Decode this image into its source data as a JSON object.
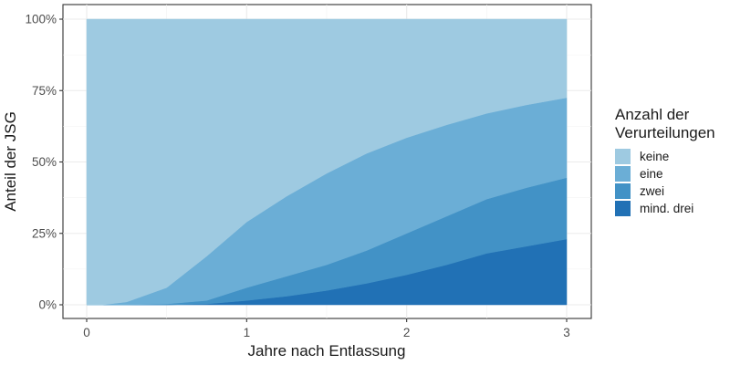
{
  "chart_data": {
    "type": "area",
    "stacked": true,
    "normalized": true,
    "title": "",
    "xlabel": "Jahre nach Entlassung",
    "ylabel": "Anteil der JSG",
    "xlim": [
      0,
      3
    ],
    "ylim": [
      0,
      100
    ],
    "x_ticks": [
      "0",
      "1",
      "2",
      "3"
    ],
    "y_ticks": [
      "0%",
      "25%",
      "50%",
      "75%",
      "100%"
    ],
    "grid": true,
    "legend_position": "right",
    "legend_title": "Anzahl der Verurteilungen",
    "x": [
      0,
      0.1,
      0.25,
      0.5,
      0.75,
      1.0,
      1.25,
      1.5,
      1.75,
      2.0,
      2.25,
      2.5,
      2.75,
      3.0
    ],
    "series": [
      {
        "name": "mind. drei",
        "color": "#2171b5",
        "values": [
          0,
          0,
          0,
          0,
          0.3,
          1.5,
          3,
          5,
          7.5,
          10.5,
          14,
          18,
          20.5,
          23
        ]
      },
      {
        "name": "zwei",
        "color": "#4292c6",
        "values": [
          0,
          0,
          0,
          0.3,
          1.2,
          4.5,
          7,
          9,
          11.5,
          14.5,
          17,
          19,
          20.5,
          21.5
        ]
      },
      {
        "name": "eine",
        "color": "#6baed6",
        "values": [
          0,
          0,
          1,
          5.7,
          15.5,
          23,
          28,
          32,
          34,
          33.5,
          32,
          30,
          29,
          28
        ]
      },
      {
        "name": "keine",
        "color": "#9ecae1",
        "values": [
          100,
          100,
          99,
          94,
          83,
          71,
          62,
          54,
          47,
          41.5,
          37,
          33,
          30,
          27.5
        ]
      }
    ]
  },
  "legend": {
    "title_line1": "Anzahl der",
    "title_line2": "Verurteilungen",
    "items": [
      {
        "label": "keine",
        "color": "#9ecae1"
      },
      {
        "label": "eine",
        "color": "#6baed6"
      },
      {
        "label": "zwei",
        "color": "#4292c6"
      },
      {
        "label": "mind. drei",
        "color": "#2171b5"
      }
    ]
  }
}
